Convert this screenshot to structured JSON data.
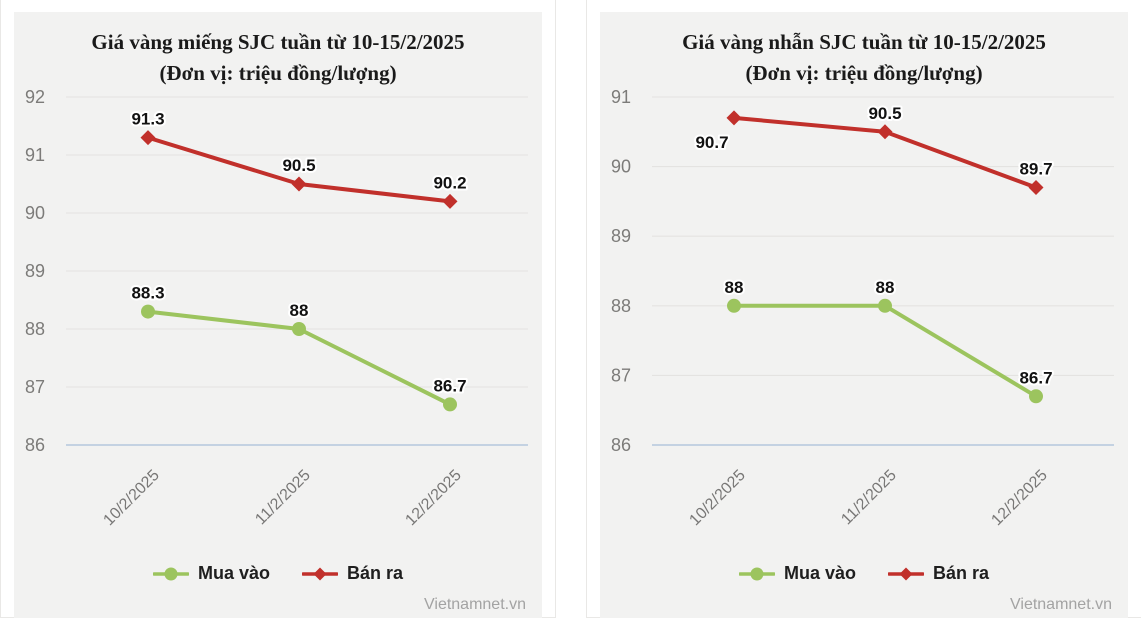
{
  "watermark": "Vietnamnet.vn",
  "colors": {
    "buy": "#9cc45e",
    "sell": "#c1302b",
    "card_bg": "#f2f2f1",
    "grid": "#e4e3e1",
    "baseline": "#b5c7dd",
    "title": "#1a1a1a",
    "value_label": "#121212",
    "tick_label": "#7c7b79",
    "legend_text": "#1f1f1f",
    "watermark_text": "#a3a3a3"
  },
  "chart_data": [
    {
      "type": "line",
      "title": "Giá vàng miếng SJC tuần từ 10-15/2/2025",
      "subtitle": "(Đơn vị: triệu đồng/lượng)",
      "categories": [
        "10/2/2025",
        "11/2/2025",
        "12/2/2025"
      ],
      "series": [
        {
          "name": "Mua vào",
          "values": [
            88.3,
            88,
            86.7
          ],
          "labels": [
            "88.3",
            "88",
            "86.7"
          ],
          "color_key": "buy",
          "marker": "circle",
          "label_pos": [
            "above",
            "above",
            "above"
          ]
        },
        {
          "name": "Bán ra",
          "values": [
            91.3,
            90.5,
            90.2
          ],
          "labels": [
            "91.3",
            "90.5",
            "90.2"
          ],
          "color_key": "sell",
          "marker": "diamond",
          "label_pos": [
            "above",
            "above",
            "above"
          ]
        }
      ],
      "ylim": [
        86,
        92
      ],
      "yticks": [
        92,
        91,
        90,
        89,
        88,
        87,
        86
      ],
      "grid": true,
      "legend_position": "bottom",
      "value_labels": true
    },
    {
      "type": "line",
      "title": "Giá vàng nhẫn SJC tuần từ 10-15/2/2025",
      "subtitle": "(Đơn vị: triệu đồng/lượng)",
      "categories": [
        "10/2/2025",
        "11/2/2025",
        "12/2/2025"
      ],
      "series": [
        {
          "name": "Mua vào",
          "values": [
            88,
            88,
            86.7
          ],
          "labels": [
            "88",
            "88",
            "86.7"
          ],
          "color_key": "buy",
          "marker": "circle",
          "label_pos": [
            "above",
            "above",
            "above"
          ]
        },
        {
          "name": "Bán ra",
          "values": [
            90.7,
            90.5,
            89.7
          ],
          "labels": [
            "90.7",
            "90.5",
            "89.7"
          ],
          "color_key": "sell",
          "marker": "diamond",
          "label_pos": [
            "below",
            "above",
            "above"
          ]
        }
      ],
      "ylim": [
        86,
        91
      ],
      "yticks": [
        91,
        90,
        89,
        88,
        87,
        86
      ],
      "grid": true,
      "legend_position": "bottom",
      "value_labels": true
    }
  ]
}
